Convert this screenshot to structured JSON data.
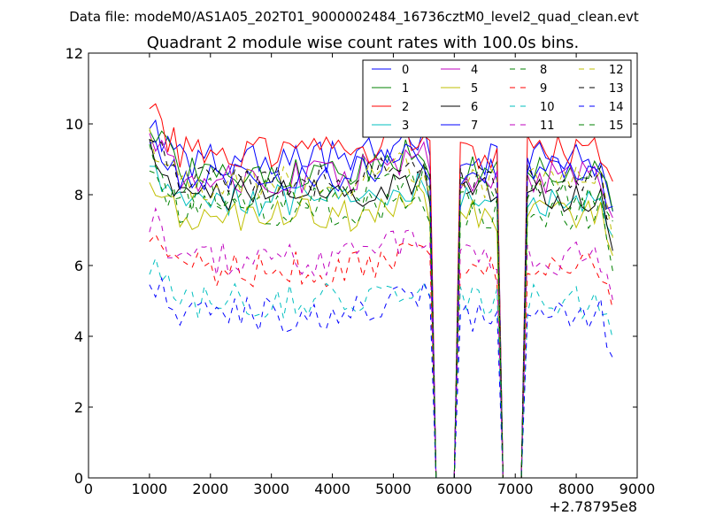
{
  "chart_data": {
    "type": "line",
    "supertitle": "Data file: modeM0/AS1A05_202T01_9000002484_16736cztM0_level2_quad_clean.evt",
    "title": "Quadrant 2 module wise count rates with 100.0s bins.",
    "xlabel": "",
    "ylabel": "",
    "x_offset_label": "+2.78795e8",
    "xlim": [
      0,
      9000
    ],
    "ylim": [
      0,
      12
    ],
    "xticks": [
      0,
      1000,
      2000,
      3000,
      4000,
      5000,
      6000,
      7000,
      8000,
      9000
    ],
    "yticks": [
      0,
      2,
      4,
      6,
      8,
      10,
      12
    ],
    "grid": false,
    "legend_position": "top-right",
    "legend_columns": 4,
    "bin_seconds": 100,
    "gaps": [
      [
        5650,
        6050
      ],
      [
        6800,
        7100
      ]
    ],
    "x_start": 1000,
    "x_end": 8600,
    "series": [
      {
        "name": "0",
        "color": "#0000ff",
        "dash": "solid",
        "level": 9.0
      },
      {
        "name": "1",
        "color": "#008000",
        "dash": "solid",
        "level": 8.7
      },
      {
        "name": "2",
        "color": "#ff0000",
        "dash": "solid",
        "level": 9.2
      },
      {
        "name": "3",
        "color": "#00bfbf",
        "dash": "solid",
        "level": 7.8
      },
      {
        "name": "4",
        "color": "#bf00bf",
        "dash": "solid",
        "level": 8.5
      },
      {
        "name": "5",
        "color": "#bfbf00",
        "dash": "solid",
        "level": 7.4
      },
      {
        "name": "6",
        "color": "#000000",
        "dash": "solid",
        "level": 8.0
      },
      {
        "name": "7",
        "color": "#0000ff",
        "dash": "solid",
        "level": 8.6
      },
      {
        "name": "8",
        "color": "#008000",
        "dash": "dashed",
        "level": 7.5
      },
      {
        "name": "9",
        "color": "#ff0000",
        "dash": "dashed",
        "level": 5.9
      },
      {
        "name": "10",
        "color": "#00bfbf",
        "dash": "dashed",
        "level": 5.0
      },
      {
        "name": "11",
        "color": "#bf00bf",
        "dash": "dashed",
        "level": 6.2
      },
      {
        "name": "12",
        "color": "#bfbf00",
        "dash": "dashed",
        "level": 8.3
      },
      {
        "name": "13",
        "color": "#000000",
        "dash": "dashed",
        "level": 8.4
      },
      {
        "name": "14",
        "color": "#0000ff",
        "dash": "dashed",
        "level": 4.6
      },
      {
        "name": "15",
        "color": "#008000",
        "dash": "dashed",
        "level": 8.0
      }
    ]
  }
}
